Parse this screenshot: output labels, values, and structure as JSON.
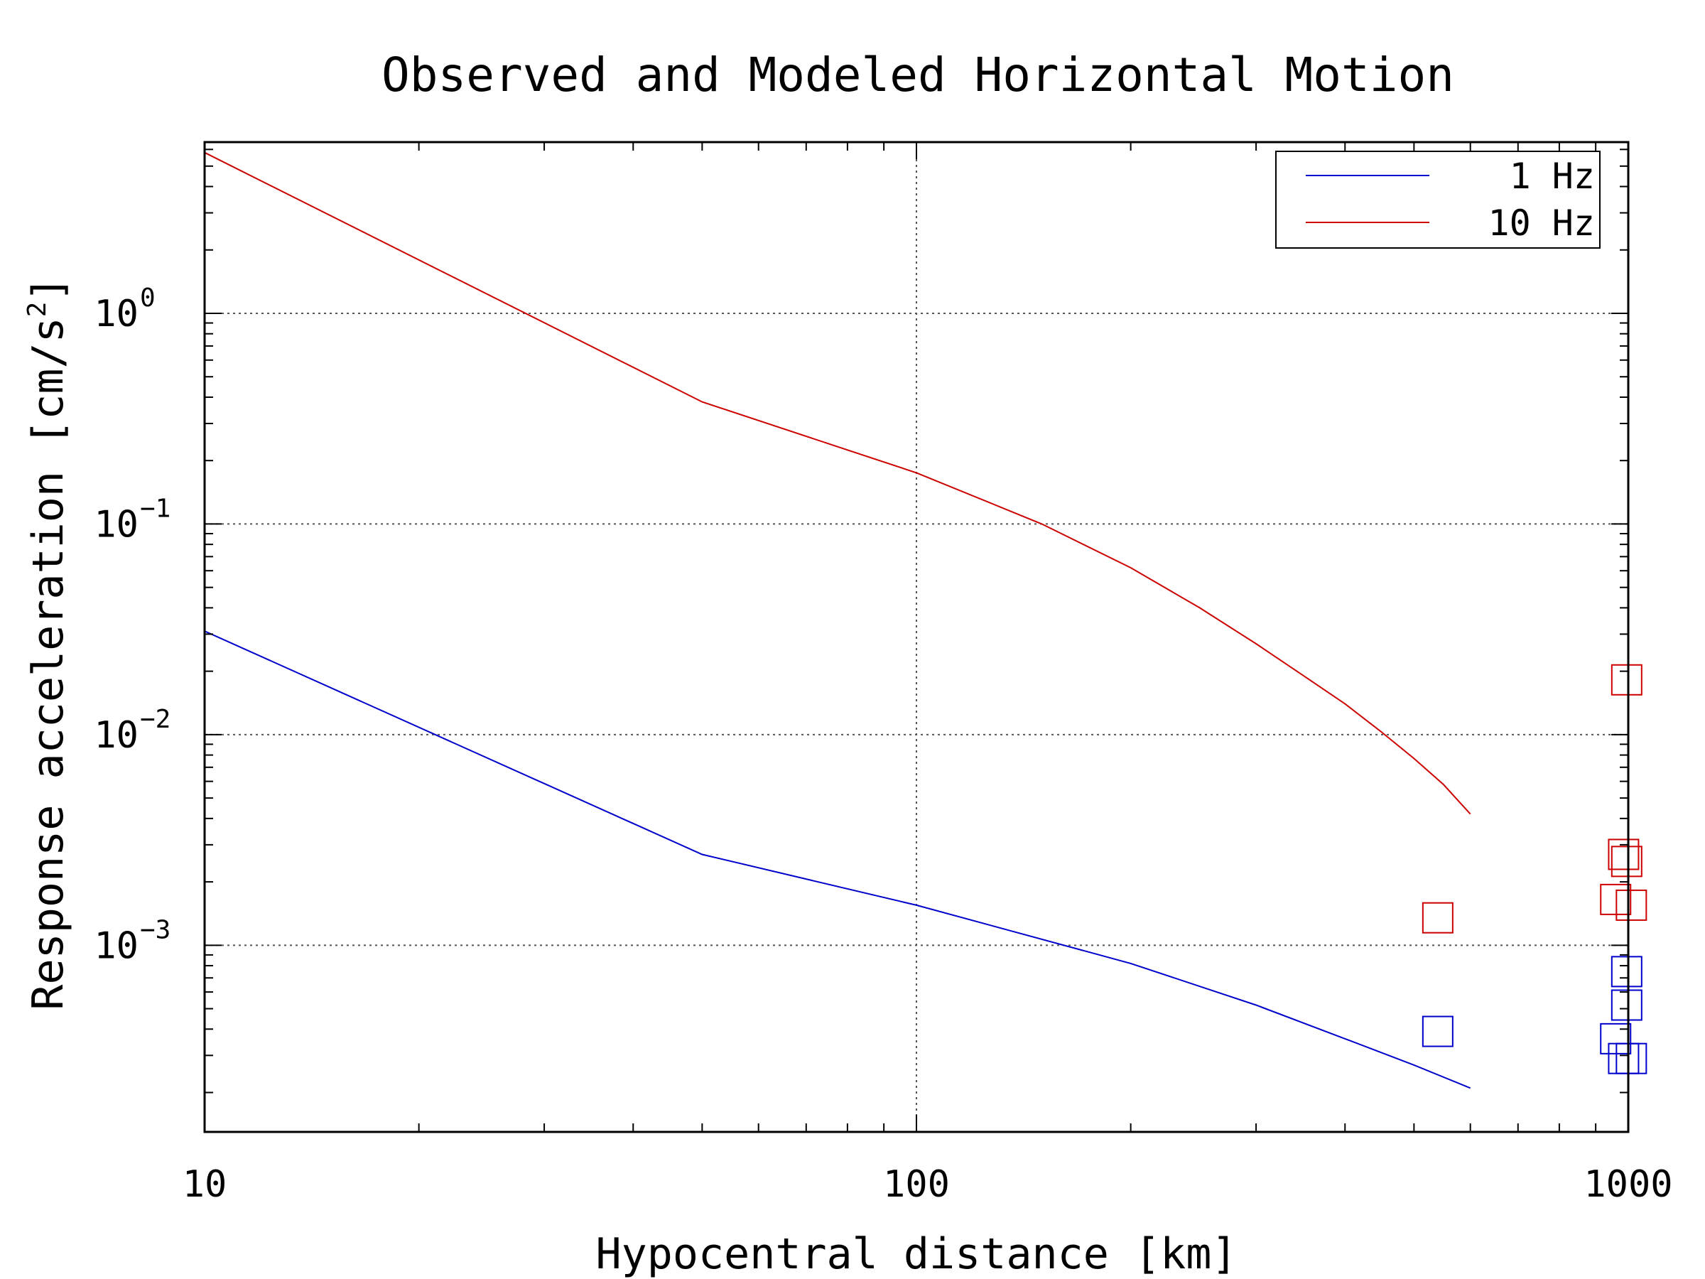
{
  "chart_data": {
    "type": "line",
    "title": "Observed and Modeled Horizontal Motion",
    "xlabel": "Hypocentral distance [km]",
    "ylabel_text": "Response acceleration [cm/s",
    "ylabel_superscript": "2",
    "ylabel_close": "]",
    "x_scale": "log",
    "y_scale": "log",
    "xlim": [
      10,
      1000
    ],
    "ylim": [
      0.00013,
      6.5
    ],
    "x_ticks": [
      {
        "value": 10,
        "label": "10"
      },
      {
        "value": 100,
        "label": "100"
      },
      {
        "value": 1000,
        "label": "1000"
      }
    ],
    "y_ticks": [
      {
        "value": 1,
        "base": "10",
        "exponent": "0"
      },
      {
        "value": 0.1,
        "base": "10",
        "exponent": "−1"
      },
      {
        "value": 0.01,
        "base": "10",
        "exponent": "−2"
      },
      {
        "value": 0.001,
        "base": "10",
        "exponent": "−3"
      }
    ],
    "grid": true,
    "legend_position": "top-right",
    "series": [
      {
        "name": "1 Hz",
        "color": "#0000cc",
        "x": [
          10,
          50,
          100,
          200,
          300,
          400,
          500,
          600
        ],
        "y": [
          0.031,
          0.0027,
          0.00155,
          0.00082,
          0.00052,
          0.00036,
          0.00027,
          0.00021
        ]
      },
      {
        "name": "10 Hz",
        "color": "#cc0000",
        "x": [
          10,
          50,
          100,
          150,
          200,
          250,
          300,
          350,
          400,
          450,
          500,
          550,
          600
        ],
        "y": [
          5.8,
          0.38,
          0.175,
          0.1,
          0.062,
          0.04,
          0.027,
          0.019,
          0.014,
          0.0103,
          0.0077,
          0.0058,
          0.0042
        ]
      }
    ],
    "observed": [
      {
        "series": "1 Hz",
        "marker": "square",
        "color": "#0000cc",
        "x": [
          540,
          960,
          995,
          995,
          1010,
          985
        ],
        "y": [
          0.00039,
          0.00036,
          0.00075,
          0.00052,
          0.00029,
          0.00029
        ]
      },
      {
        "series": "10 Hz",
        "marker": "square",
        "color": "#cc0000",
        "x": [
          540,
          960,
          995,
          985,
          1010,
          995
        ],
        "y": [
          0.00135,
          0.00165,
          0.0182,
          0.0027,
          0.00155,
          0.0025
        ]
      }
    ]
  }
}
